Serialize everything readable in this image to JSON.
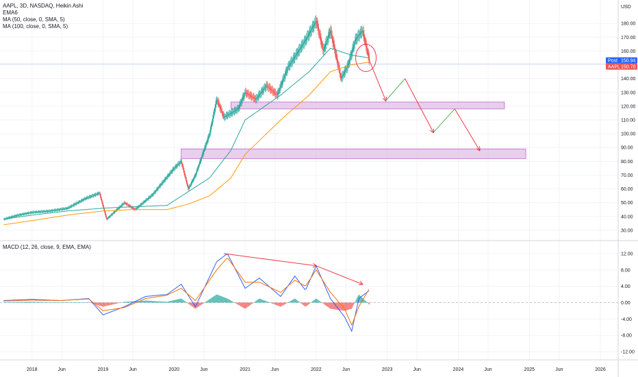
{
  "header": {
    "symbol_line": "AAPL, 3D, NASDAQ, Heikin Ashi",
    "indicator_1": "EMA6",
    "indicator_2": "MA (50, close, 0, SMA, 5)",
    "indicator_3": "MA (100, close, 0, SMA, 5)"
  },
  "price_axis": {
    "currency": "USD",
    "labels": [
      "180.00",
      "170.00",
      "160.00",
      "150.00",
      "140.00",
      "130.00",
      "120.00",
      "110.00",
      "100.00",
      "90.00",
      "80.00",
      "70.00",
      "60.00",
      "50.00",
      "40.00",
      "30.00"
    ],
    "post_badge": {
      "label": "Post",
      "value": "150.94",
      "color": "#2962ff"
    },
    "last_badge": {
      "label": "AAPL",
      "value": "150.70",
      "color": "#ef5350"
    }
  },
  "macd_panel": {
    "title": "MACD (12, 26, close, 9, EMA, EMA)",
    "labels": [
      "12.00",
      "8.00",
      "4.00",
      "0.00",
      "-4.00",
      "-8.00",
      "-12.00"
    ]
  },
  "time_axis": {
    "labels": [
      "2018",
      "Jun",
      "2019",
      "Jun",
      "2020",
      "Jun",
      "2021",
      "Jun",
      "2022",
      "Jun",
      "2023",
      "Jun",
      "2024",
      "Jun",
      "2025",
      "Jun",
      "2026"
    ]
  },
  "colors": {
    "up_candle": "#26a69a",
    "down_candle": "#ef5350",
    "ma50": "#26a69a",
    "ma100": "#ff9800",
    "macd_line": "#2962ff",
    "signal_line": "#ff6d00",
    "annotation": "#f23645",
    "projection_green": "#4caf50",
    "zone_fill": "#e1bee7",
    "zone_stroke": "#ba68c8",
    "price_line": "#2962ff"
  },
  "chart_data": {
    "type": "candlestick",
    "symbol": "AAPL",
    "interval": "3D",
    "style": "Heikin Ashi",
    "series": [
      {
        "name": "MA (50, close, 0, SMA, 5)",
        "t": [
          2017.6,
          2018.0,
          2018.5,
          2019.0,
          2019.4,
          2019.9,
          2020.2,
          2020.5,
          2020.8,
          2021.0,
          2021.5,
          2021.9,
          2022.2,
          2022.5,
          2022.75
        ],
        "y": [
          38,
          41,
          44,
          46,
          47,
          48,
          58,
          68,
          88,
          110,
          128,
          145,
          162,
          157,
          155
        ]
      },
      {
        "name": "MA (100, close, 0, SMA, 5)",
        "t": [
          2017.6,
          2018.0,
          2018.5,
          2019.0,
          2019.4,
          2019.9,
          2020.2,
          2020.5,
          2020.8,
          2021.0,
          2021.5,
          2021.9,
          2022.2,
          2022.5,
          2022.75
        ],
        "y": [
          34,
          37,
          41,
          44,
          45,
          45,
          49,
          55,
          68,
          85,
          110,
          128,
          145,
          150,
          152
        ]
      }
    ],
    "price_path": {
      "t": [
        2017.6,
        2017.8,
        2018.0,
        2018.25,
        2018.5,
        2018.75,
        2018.95,
        2019.05,
        2019.3,
        2019.45,
        2019.7,
        2020.0,
        2020.1,
        2020.2,
        2020.3,
        2020.5,
        2020.6,
        2020.7,
        2020.9,
        2021.0,
        2021.15,
        2021.3,
        2021.45,
        2021.6,
        2021.85,
        2022.0,
        2022.1,
        2022.2,
        2022.35,
        2022.45,
        2022.55,
        2022.65,
        2022.75
      ],
      "y": [
        38,
        41,
        43,
        44,
        46,
        53,
        57,
        38,
        50,
        45,
        56,
        75,
        80,
        60,
        70,
        100,
        125,
        112,
        118,
        130,
        125,
        135,
        128,
        148,
        168,
        182,
        160,
        175,
        140,
        150,
        168,
        175,
        153
      ]
    },
    "zones": [
      {
        "from": 2020.8,
        "to": 2024.65,
        "low": 118,
        "high": 123
      },
      {
        "from": 2020.1,
        "to": 2024.95,
        "low": 82,
        "high": 89
      }
    ],
    "projection": {
      "t": [
        2022.75,
        2022.98,
        2023.25,
        2023.65,
        2023.95,
        2024.3
      ],
      "y": [
        153,
        124,
        140,
        101,
        118,
        88
      ]
    },
    "price_line": 150.7,
    "circle": {
      "t": 2022.7,
      "y": 155
    },
    "macd": {
      "t": [
        2017.6,
        2018.0,
        2018.4,
        2018.8,
        2019.0,
        2019.3,
        2019.6,
        2019.9,
        2020.1,
        2020.3,
        2020.6,
        2020.75,
        2021.0,
        2021.2,
        2021.5,
        2021.7,
        2021.85,
        2022.0,
        2022.2,
        2022.4,
        2022.5,
        2022.6,
        2022.75
      ],
      "line": [
        0.5,
        0.8,
        0.5,
        1.0,
        -3.0,
        -1.0,
        1.5,
        2.0,
        4.5,
        -1.0,
        10.0,
        12.0,
        3.5,
        6.0,
        1.5,
        6.5,
        3.0,
        9.0,
        1.0,
        -3.5,
        -7.0,
        1.0,
        3.0
      ],
      "signal": [
        0.4,
        0.6,
        0.5,
        0.9,
        -2.0,
        -1.2,
        1.0,
        1.8,
        3.5,
        0.5,
        8.0,
        11.0,
        5.0,
        5.0,
        2.5,
        5.5,
        4.0,
        8.0,
        2.5,
        -1.5,
        -5.5,
        -1.0,
        3.5
      ]
    },
    "divergence": {
      "price": {
        "t": [
          2020.7,
          2022.0,
          2022.65
        ],
        "y": [
          12.0,
          9.0,
          4.5
        ]
      }
    },
    "x_range": [
      2017.55,
      2026.25
    ],
    "y_range": [
      23,
      197
    ],
    "macd_range": [
      -14,
      15
    ]
  }
}
